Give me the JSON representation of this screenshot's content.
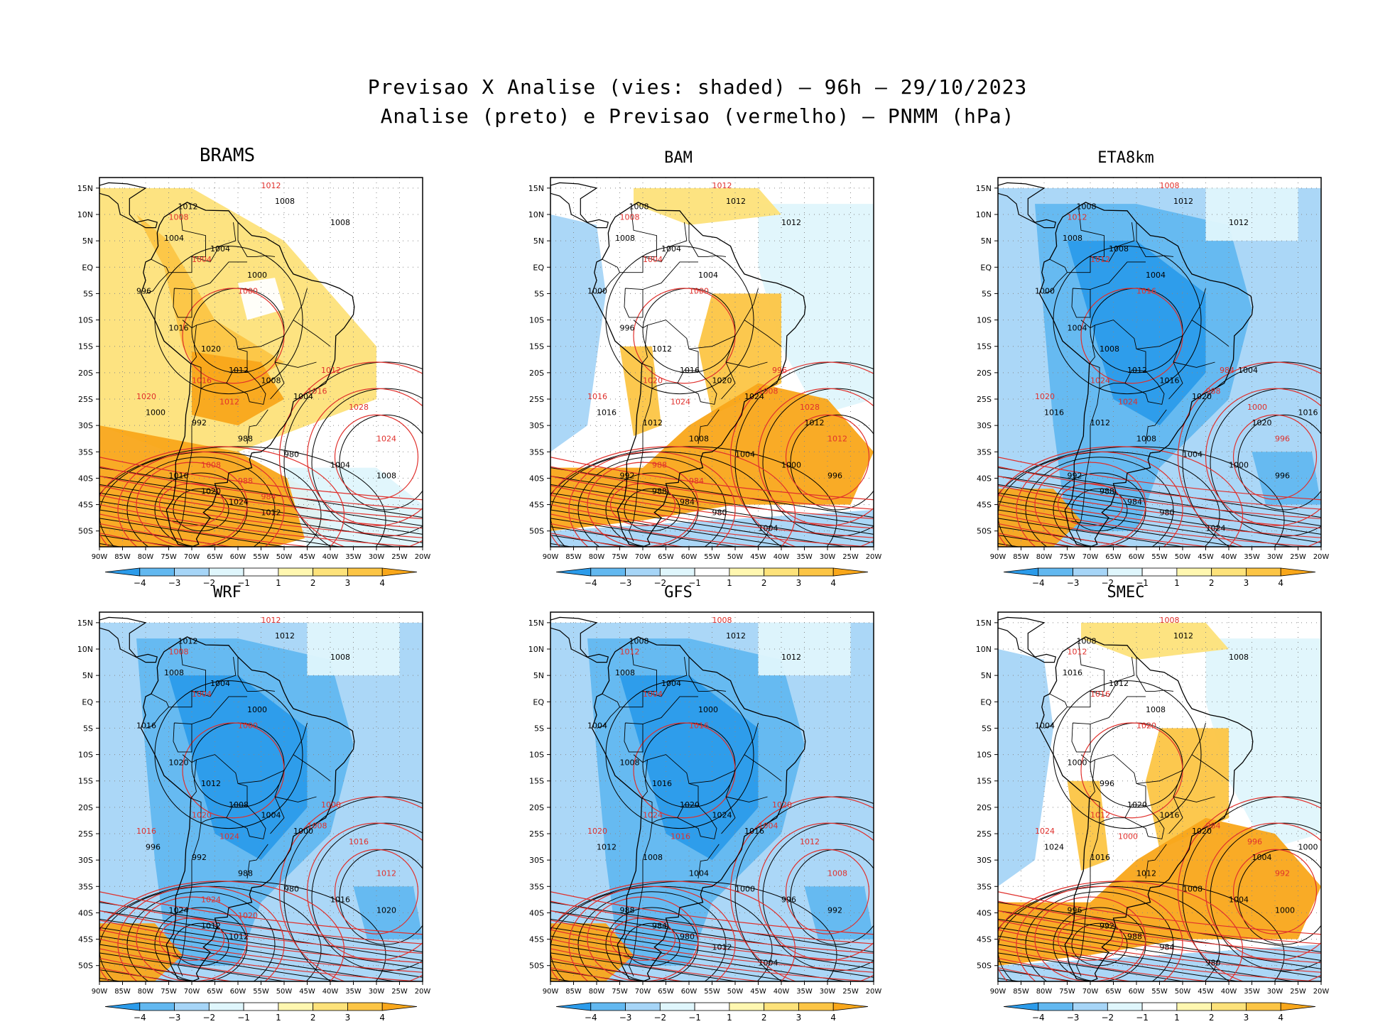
{
  "title": {
    "line1": "Previsao X Analise (vies: shaded) — 96h — 29/10/2023",
    "line2": "Analise (preto) e Previsao (vermelho) — PNMM (hPa)"
  },
  "axes": {
    "lat_labels": [
      "15N",
      "10N",
      "5N",
      "EQ",
      "5S",
      "10S",
      "15S",
      "20S",
      "25S",
      "30S",
      "35S",
      "40S",
      "45S",
      "50S"
    ],
    "lon_labels": [
      "90W",
      "85W",
      "80W",
      "75W",
      "70W",
      "65W",
      "60W",
      "55W",
      "50W",
      "45W",
      "40W",
      "35W",
      "30W",
      "25W",
      "20W"
    ]
  },
  "colorbar": {
    "ticks": [
      "−4",
      "−3",
      "−2",
      "−1",
      "1",
      "2",
      "3",
      "4"
    ],
    "colors": [
      "#2b9bea",
      "#62b8f0",
      "#a6d5f7",
      "#dff6fc",
      "#ffffff",
      "#fff7b0",
      "#fde27a",
      "#fcc545",
      "#f9a71a"
    ]
  },
  "colors": {
    "analysis_line": "#000000",
    "forecast_line": "#e0302c",
    "positive": "#f9a71a",
    "negative": "#62b8f0"
  },
  "panels": [
    {
      "name": "BRAMS",
      "bias": "warm",
      "labels_black": [
        "1012",
        "1008",
        "1008",
        "1004",
        "1004",
        "1000",
        "996",
        "1016",
        "1020",
        "1012",
        "1008",
        "1004",
        "1000",
        "992",
        "988",
        "980",
        "1004",
        "1008",
        "1016",
        "1020",
        "1024",
        "1012"
      ],
      "labels_red": [
        "1012",
        "1008",
        "1004",
        "1000",
        "1020",
        "1016",
        "1012",
        "1028",
        "1024",
        "1016",
        "1012",
        "1008",
        "988",
        "984"
      ]
    },
    {
      "name": "BAM",
      "bias": "mixed",
      "labels_black": [
        "1008",
        "1012",
        "1012",
        "1008",
        "1004",
        "1004",
        "1000",
        "996",
        "1012",
        "1016",
        "1020",
        "1024",
        "1016",
        "1012",
        "1008",
        "1004",
        "1000",
        "996",
        "992",
        "988",
        "984",
        "980",
        "1004",
        "1012"
      ],
      "labels_red": [
        "1012",
        "1008",
        "1004",
        "1000",
        "1016",
        "1020",
        "1024",
        "1028",
        "1012",
        "1008",
        "996",
        "988",
        "984"
      ]
    },
    {
      "name": "ETA8km",
      "bias": "cold",
      "labels_black": [
        "1008",
        "1012",
        "1012",
        "1008",
        "1008",
        "1004",
        "1000",
        "1004",
        "1008",
        "1012",
        "1016",
        "1020",
        "1016",
        "1012",
        "1008",
        "1004",
        "1000",
        "996",
        "992",
        "988",
        "984",
        "980",
        "1024",
        "1020",
        "1016",
        "1004"
      ],
      "labels_red": [
        "1008",
        "1012",
        "1012",
        "1016",
        "1020",
        "1024",
        "1024",
        "1000",
        "996",
        "988",
        "984"
      ]
    },
    {
      "name": "WRF",
      "bias": "cold",
      "labels_black": [
        "1012",
        "1012",
        "1008",
        "1008",
        "1004",
        "1000",
        "1016",
        "1020",
        "1012",
        "1008",
        "1004",
        "1000",
        "996",
        "992",
        "988",
        "980",
        "1016",
        "1020",
        "1024",
        "1012",
        "1012"
      ],
      "labels_red": [
        "1012",
        "1008",
        "1004",
        "1000",
        "1016",
        "1020",
        "1024",
        "1016",
        "1012",
        "1008",
        "1000",
        "1024",
        "1020"
      ]
    },
    {
      "name": "GFS",
      "bias": "cold",
      "labels_black": [
        "1008",
        "1012",
        "1012",
        "1008",
        "1004",
        "1000",
        "1004",
        "1008",
        "1016",
        "1020",
        "1024",
        "1016",
        "1012",
        "1008",
        "1004",
        "1000",
        "996",
        "992",
        "988",
        "984",
        "980",
        "1012",
        "1004"
      ],
      "labels_red": [
        "1008",
        "1012",
        "1004",
        "1016",
        "1020",
        "1024",
        "1016",
        "1012",
        "1008",
        "1004",
        "1020"
      ]
    },
    {
      "name": "SMEC",
      "bias": "mixed",
      "labels_black": [
        "1008",
        "1012",
        "1008",
        "1016",
        "1012",
        "1008",
        "1004",
        "1000",
        "996",
        "1020",
        "1016",
        "1020",
        "1024",
        "1016",
        "1012",
        "1008",
        "1004",
        "1000",
        "996",
        "992",
        "988",
        "984",
        "980",
        "1004",
        "1000"
      ],
      "labels_red": [
        "1008",
        "1012",
        "1016",
        "1020",
        "1024",
        "1012",
        "1000",
        "996",
        "992",
        "984"
      ]
    }
  ]
}
